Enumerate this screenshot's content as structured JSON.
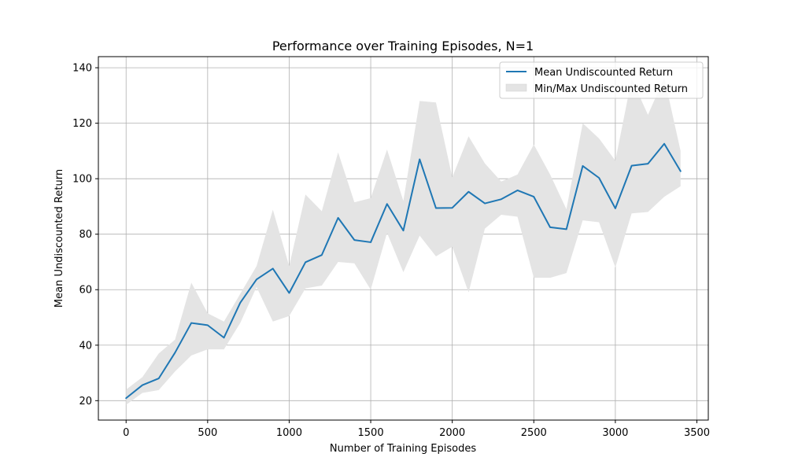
{
  "chart_data": {
    "type": "line",
    "title": "Performance over Training Episodes, N=1",
    "xlabel": "Number of Training Episodes",
    "ylabel": "Mean Undiscounted Return",
    "xlim": [
      -170,
      3570
    ],
    "ylim": [
      13,
      144
    ],
    "x_ticks": [
      0,
      500,
      1000,
      1500,
      2000,
      2500,
      3000,
      3500
    ],
    "y_ticks": [
      20,
      40,
      60,
      80,
      100,
      120,
      140
    ],
    "grid": true,
    "legend_position": "top-right",
    "legend": {
      "mean_label": "Mean Undiscounted Return",
      "band_label": "Min/Max Undiscounted Return"
    },
    "colors": {
      "mean_line": "#1f77b4",
      "band_fill": "#e4e4e4",
      "grid": "#b0b0b0"
    },
    "x": [
      0,
      100,
      200,
      300,
      400,
      500,
      600,
      700,
      800,
      900,
      1000,
      1100,
      1200,
      1300,
      1400,
      1500,
      1600,
      1700,
      1800,
      1900,
      2000,
      2100,
      2200,
      2300,
      2400,
      2500,
      2600,
      2700,
      2800,
      2900,
      3000,
      3100,
      3200,
      3300,
      3400
    ],
    "series": [
      {
        "name": "Mean Undiscounted Return",
        "values": [
          20.9,
          25.6,
          28.0,
          37.3,
          48.0,
          47.2,
          42.7,
          55.3,
          63.7,
          67.6,
          58.8,
          69.9,
          72.5,
          85.9,
          77.9,
          77.1,
          90.9,
          81.3,
          107.0,
          89.4,
          89.5,
          95.3,
          91.1,
          92.6,
          95.8,
          93.5,
          82.5,
          81.8,
          104.6,
          100.3,
          89.3,
          104.7,
          105.4,
          112.6,
          102.7
        ]
      },
      {
        "name": "Min/Max Undiscounted Return",
        "min": [
          18.5,
          22.8,
          23.8,
          30.5,
          36.3,
          38.5,
          38.5,
          48.0,
          61.0,
          48.5,
          50.5,
          60.5,
          61.5,
          70.0,
          69.5,
          60.0,
          80.5,
          66.3,
          79.5,
          72.0,
          75.5,
          59.0,
          82.0,
          87.0,
          86.3,
          64.3,
          64.3,
          66.0,
          85.0,
          84.3,
          68.0,
          87.5,
          88.0,
          93.5,
          97.3
        ],
        "max": [
          24.0,
          28.5,
          37.0,
          42.0,
          62.5,
          51.5,
          48.5,
          58.5,
          68.5,
          88.8,
          68.5,
          94.3,
          88.3,
          109.5,
          91.5,
          93.0,
          110.5,
          92.0,
          128.0,
          127.5,
          100.5,
          115.3,
          105.5,
          99.0,
          101.5,
          112.3,
          101.5,
          89.0,
          120.0,
          114.5,
          106.5,
          136.0,
          123.0,
          136.5,
          110.0
        ]
      }
    ]
  }
}
